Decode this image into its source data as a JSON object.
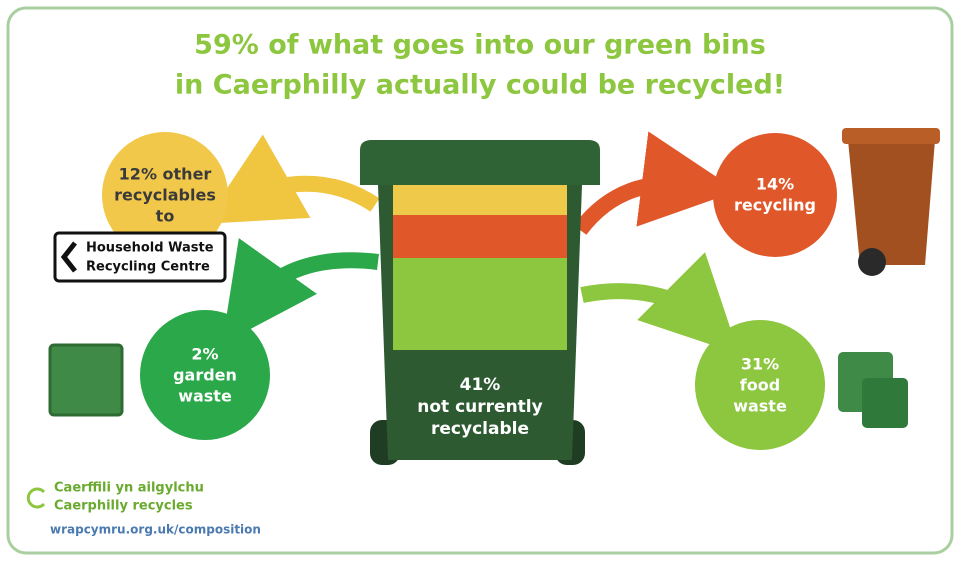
{
  "title": {
    "lines": [
      "59% of what goes into our green bins",
      "in Caerphilly actually could be recycled!"
    ]
  },
  "other_recyclables": {
    "lines": [
      "12% other",
      "recyclables",
      "to"
    ],
    "sign": [
      "Household Waste",
      "Recycling Centre"
    ]
  },
  "recycling": {
    "lines": [
      "14%",
      "recycling"
    ]
  },
  "garden_waste": {
    "lines": [
      "2%",
      "garden",
      "waste"
    ]
  },
  "food_waste": {
    "lines": [
      "31%",
      "food",
      "waste"
    ]
  },
  "not_recyclable": {
    "lines": [
      "41%",
      "not currently",
      "recyclable"
    ]
  },
  "footer": {
    "brand": [
      "Caerffili yn ailgylchu",
      "Caerphilly recycles"
    ],
    "url": "wrapcymru.org.uk/composition"
  }
}
